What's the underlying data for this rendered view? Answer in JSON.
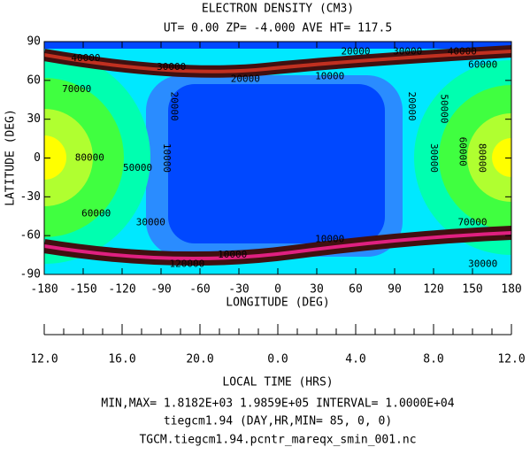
{
  "chart_data": {
    "type": "contour",
    "title": "ELECTRON DENSITY (CM3)",
    "subtitle": "UT= 0.00 ZP= -4.000 AVE HT= 117.5",
    "x_label": "LONGITUDE (DEG)",
    "y_label": "LATITUDE (DEG)",
    "xlim": [
      -180,
      180
    ],
    "ylim": [
      -90,
      90
    ],
    "xticks": [
      -180,
      -150,
      -120,
      -90,
      -60,
      -30,
      0,
      30,
      60,
      90,
      120,
      150,
      180
    ],
    "yticks": [
      -90,
      -60,
      -30,
      0,
      30,
      60,
      90
    ],
    "local_time_label": "LOCAL TIME (HRS)",
    "local_time_ticks": [
      "12.0",
      "16.0",
      "20.0",
      "0.0",
      "4.0",
      "8.0",
      "12.0"
    ],
    "contour_labels": [
      {
        "value": 40000,
        "x": -148,
        "y": 77
      },
      {
        "value": 30000,
        "x": -82,
        "y": 70
      },
      {
        "value": 20000,
        "x": -25,
        "y": 61
      },
      {
        "value": 10000,
        "x": 40,
        "y": 63
      },
      {
        "value": 20000,
        "x": 60,
        "y": 82
      },
      {
        "value": 30000,
        "x": 100,
        "y": 82
      },
      {
        "value": 40000,
        "x": 142,
        "y": 82
      },
      {
        "value": 60000,
        "x": 158,
        "y": 72
      },
      {
        "value": 70000,
        "x": -155,
        "y": 53
      },
      {
        "value": 80000,
        "x": -145,
        "y": 0
      },
      {
        "value": 50000,
        "x": -108,
        "y": -8
      },
      {
        "value": 60000,
        "x": -140,
        "y": -43
      },
      {
        "value": 30000,
        "x": -98,
        "y": -50
      },
      {
        "value": 20000,
        "x": -80,
        "y": 40,
        "rotate": true
      },
      {
        "value": 10000,
        "x": -86,
        "y": 0,
        "rotate": true
      },
      {
        "value": 20000,
        "x": 103,
        "y": 40,
        "rotate": true
      },
      {
        "value": 30000,
        "x": 120,
        "y": 0,
        "rotate": true
      },
      {
        "value": 50000,
        "x": 128,
        "y": 38,
        "rotate": true
      },
      {
        "value": 60000,
        "x": 142,
        "y": 5,
        "rotate": true
      },
      {
        "value": 80000,
        "x": 157,
        "y": 0,
        "rotate": true
      },
      {
        "value": 70000,
        "x": 150,
        "y": -50
      },
      {
        "value": 30000,
        "x": 158,
        "y": -82
      },
      {
        "value": 10000,
        "x": -35,
        "y": -75
      },
      {
        "value": 10000,
        "x": 40,
        "y": -63
      },
      {
        "value": 120000,
        "x": -70,
        "y": -82
      }
    ],
    "footer": [
      "MIN,MAX=  1.8182E+03  1.9859E+05 INTERVAL=  1.0000E+04",
      "tiegcm1.94 (DAY,HR,MIN= 85, 0, 0)",
      "TGCM.tiegcm1.94.pcntr_mareqx_smin_001.nc"
    ]
  }
}
